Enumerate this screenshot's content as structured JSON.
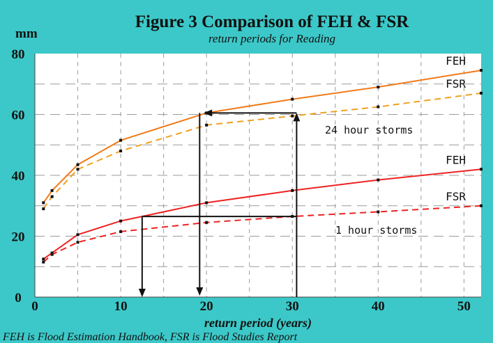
{
  "chart_data": {
    "type": "line",
    "title": "Figure 3 Comparison of FEH & FSR",
    "subtitle": "return periods for Reading",
    "ylabel": "mm",
    "xlabel": "return period (years)",
    "footnote": "FEH is Flood Estimation Handbook, FSR is Flood Studies Report",
    "xlim": [
      0,
      52
    ],
    "ylim": [
      0,
      80
    ],
    "xticks": [
      0,
      10,
      20,
      30,
      40,
      50
    ],
    "yticks": [
      0,
      20,
      40,
      60,
      80
    ],
    "grid": true,
    "annotations": [
      "24 hour storms",
      "1 hour storms"
    ],
    "series": [
      {
        "name": "FEH",
        "group": "24 hour storms",
        "style": "solid",
        "color": "#f07a18",
        "x": [
          1,
          2,
          5,
          10,
          20,
          30,
          40,
          52
        ],
        "y": [
          31,
          35,
          43.5,
          51.5,
          60.5,
          65,
          69,
          74.5
        ]
      },
      {
        "name": "FSR",
        "group": "24 hour storms",
        "style": "dashed",
        "color": "#f0a020",
        "x": [
          1,
          2,
          5,
          10,
          20,
          30,
          40,
          52
        ],
        "y": [
          29,
          33,
          42,
          48,
          56.5,
          59.5,
          62.5,
          67
        ]
      },
      {
        "name": "FEH",
        "group": "1 hour storms",
        "style": "solid",
        "color": "#ee2222",
        "x": [
          1,
          2,
          5,
          10,
          20,
          30,
          40,
          52
        ],
        "y": [
          12.5,
          14.5,
          20.5,
          25,
          31,
          35,
          38.5,
          42
        ]
      },
      {
        "name": "FSR",
        "group": "1 hour storms",
        "style": "dashed",
        "color": "#ee2222",
        "x": [
          1,
          2,
          5,
          10,
          20,
          30,
          40,
          52
        ],
        "y": [
          11.5,
          14,
          18,
          21.5,
          24.5,
          26.5,
          28,
          30
        ]
      }
    ],
    "colors": {
      "background": "#3cc8c8",
      "plot": "#ffffff",
      "grid": "#9a9a9a",
      "text": "#111111"
    }
  }
}
